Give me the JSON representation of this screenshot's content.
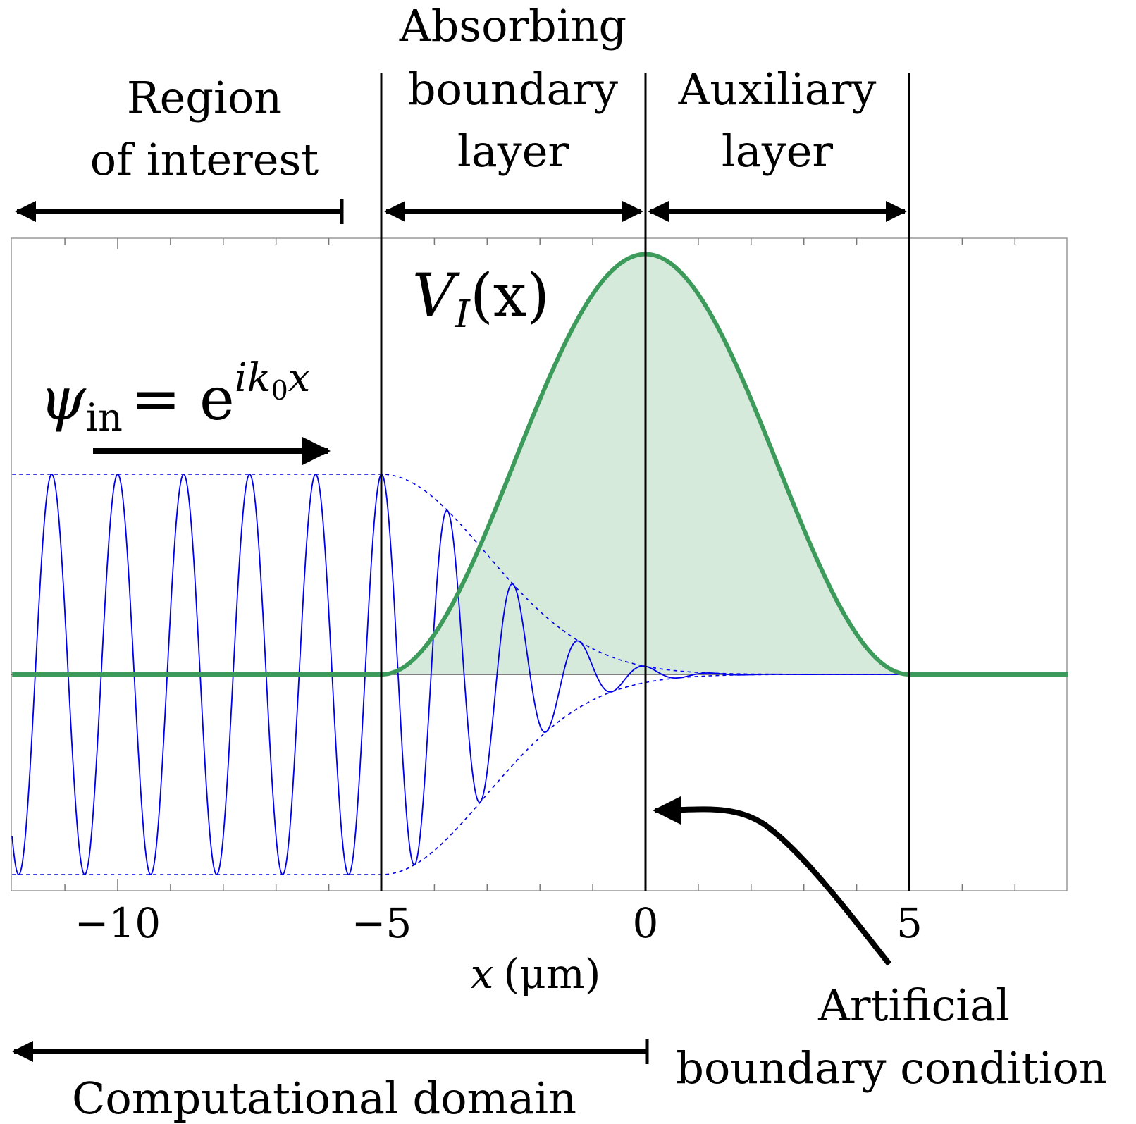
{
  "chart_data": {
    "type": "line",
    "xlabel": "x (μm)",
    "xlabel_var": "x",
    "xlabel_unit": "(μm)",
    "xlim": [
      -12,
      8
    ],
    "ylim": [
      -1.1,
      2.4
    ],
    "x_ticks": [
      {
        "value": -10,
        "label": "−10"
      },
      {
        "value": -5,
        "label": "−5"
      },
      {
        "value": 0,
        "label": "0"
      },
      {
        "value": 5,
        "label": "5"
      }
    ],
    "boundaries": [
      -5,
      0,
      5
    ],
    "series": [
      {
        "name": "ψ_in = e^{ik0x}",
        "kind": "wave",
        "color": "#0000ee",
        "wavelength": 1.25,
        "amplitude": 1.0,
        "decay_start": -5,
        "decay_width": 4.5
      },
      {
        "name": "V_I(x)",
        "kind": "absorbing-potential",
        "color": "#3c9a5a",
        "fill": "#d6eadb",
        "x": [
          -5,
          0,
          5
        ],
        "y": [
          0,
          2.1,
          0
        ]
      }
    ],
    "annotations": {
      "region_of_interest": [
        "Region",
        "of interest"
      ],
      "absorbing_layer": [
        "Absorbing",
        "boundary",
        "layer"
      ],
      "auxiliary_layer": [
        "Auxiliary",
        "layer"
      ],
      "potential_label_main": "V",
      "potential_label_sub": "I",
      "potential_label_arg": "(x)",
      "wave_label_main": "ψ",
      "wave_label_sub": "in",
      "wave_label_eq": "= e",
      "wave_label_exp": "ik",
      "wave_label_exp_sub": "0",
      "wave_label_exp_end": "x",
      "artificial_bc": [
        "Artificial",
        "boundary condition"
      ],
      "computational_domain": "Computational domain"
    }
  }
}
